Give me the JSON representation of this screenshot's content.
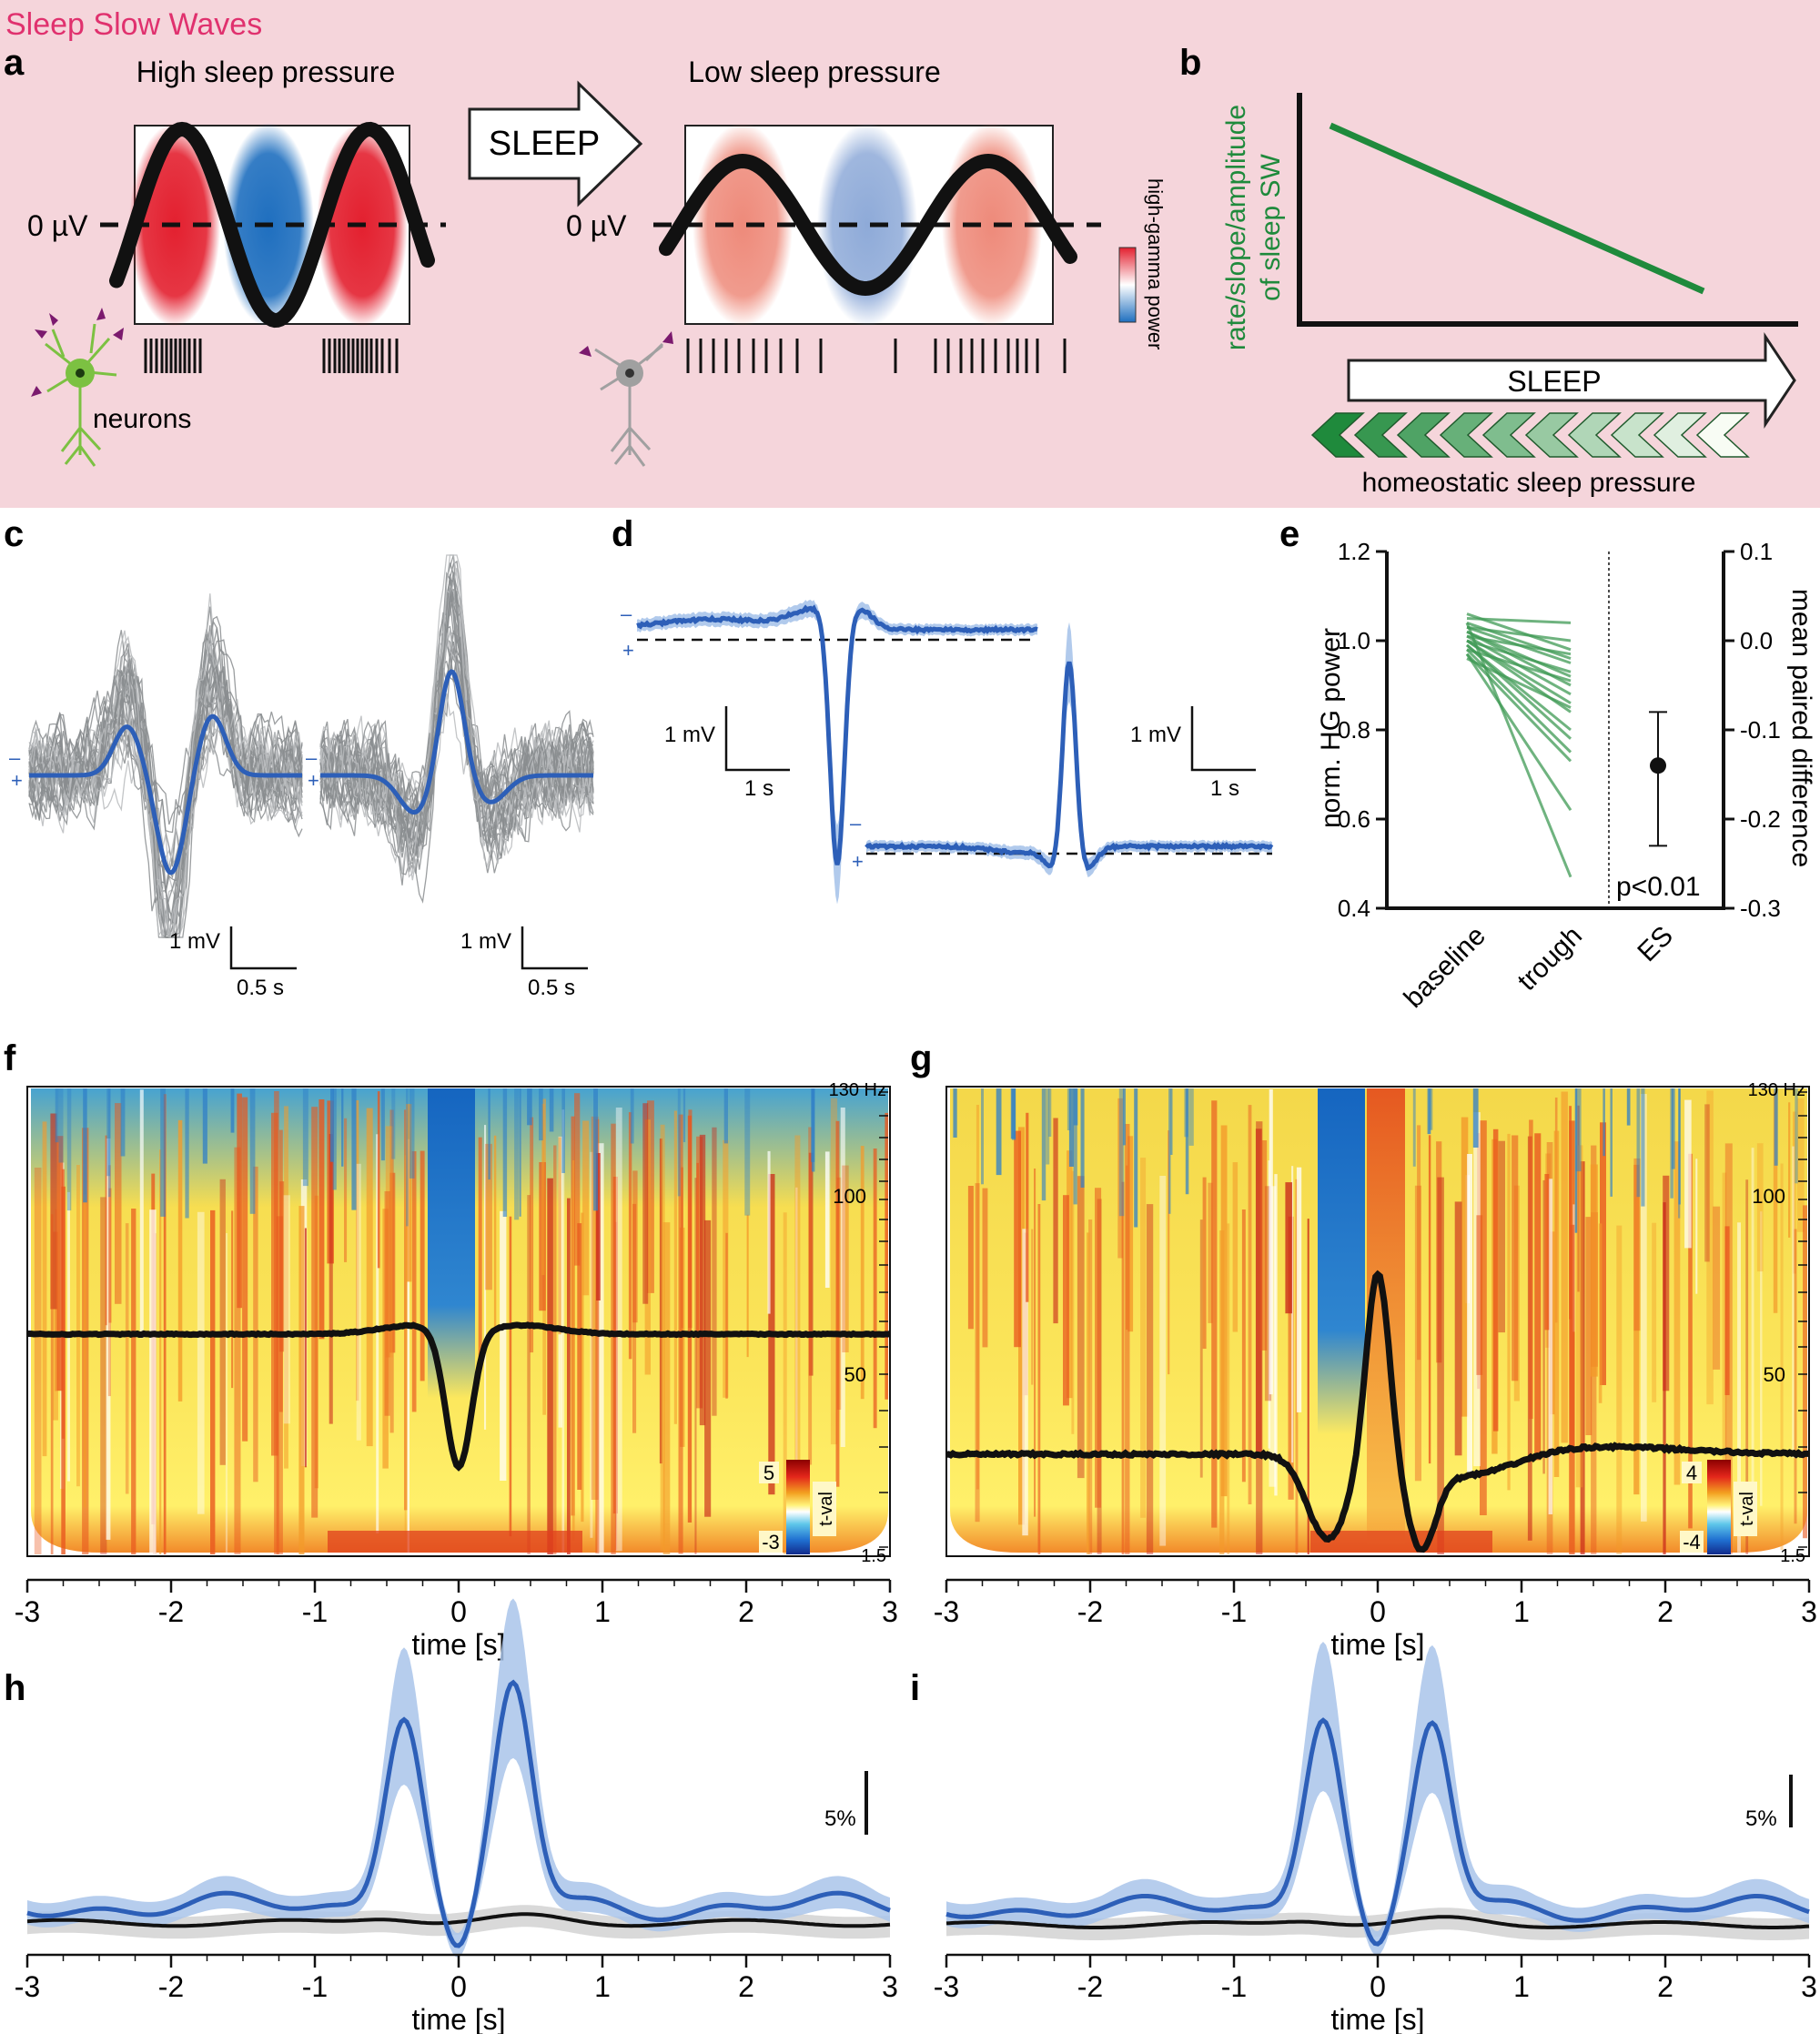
{
  "banner": {
    "title": "Sleep Slow Waves",
    "bg": "#f5d5db",
    "title_color": "#e0316e"
  },
  "panel_letters": {
    "a": "a",
    "b": "b",
    "c": "c",
    "d": "d",
    "e": "e",
    "f": "f",
    "g": "g",
    "h": "h",
    "i": "i"
  },
  "panel_a": {
    "high_title": "High sleep pressure",
    "low_title": "Low sleep pressure",
    "arrow_label": "SLEEP",
    "zero_label": "0 µV",
    "neurons_label": "neurons",
    "colorbar_label": "high-gamma power",
    "colors": {
      "red": "#e3202f",
      "blue": "#1f6fbf",
      "pale_red": "#ee8a7a",
      "pale_blue": "#8eaad8",
      "neuron_active": "#7cc142",
      "neuron_quiet": "#a0a0a0",
      "synapse": "#7b1a6e"
    }
  },
  "panel_b": {
    "ylabel_line1": "rate/slope/amplitude",
    "ylabel_line2": "of sleep SW",
    "arrow_label": "SLEEP",
    "pressure_label": "homeostatic sleep pressure",
    "line_color": "#1f8a3c"
  },
  "panel_c": {
    "scale_y": "1 mV",
    "scale_x": "0.5 s",
    "minus": "–",
    "plus": "+"
  },
  "panel_d": {
    "scale_y": "1 mV",
    "scale_x": "1 s",
    "minus": "–",
    "plus": "+"
  },
  "panel_e": {
    "ylabel_left": "norm. HG power",
    "ylabel_right": "mean paired difference",
    "left_ticks": [
      "1.2",
      "1.0",
      "0.8",
      "0.6",
      "0.4"
    ],
    "right_ticks": [
      "0.1",
      "0.0",
      "-0.1",
      "-0.2",
      "-0.3"
    ],
    "categories": [
      "baseline",
      "trough",
      "ES"
    ],
    "pvalue": "p<0.01"
  },
  "panel_f": {
    "freq_labels": [
      "130 Hz",
      "100",
      "50",
      "1.5"
    ],
    "cbar_max": "5",
    "cbar_min": "-3",
    "cbar_label": "t-val"
  },
  "panel_g": {
    "freq_labels": [
      "130 Hz",
      "100",
      "50",
      "1.5"
    ],
    "cbar_max": "4",
    "cbar_min": "-4",
    "cbar_label": "t-val"
  },
  "time_axis": {
    "ticks": [
      "-3",
      "-2",
      "-1",
      "0",
      "1",
      "2",
      "3"
    ],
    "label": "time [s]"
  },
  "panel_h": {
    "scale_label": "5%"
  },
  "panel_i": {
    "scale_label": "5%"
  },
  "chart_data": [
    {
      "type": "line",
      "panel": "b",
      "x": [
        0,
        1
      ],
      "y": [
        1,
        0
      ],
      "series": [
        {
          "values": [
            1,
            0
          ]
        }
      ]
    },
    {
      "type": "line",
      "panel": "e",
      "categories": [
        "baseline",
        "trough"
      ],
      "ylim": [
        0.4,
        1.2
      ],
      "y2lim": [
        -0.3,
        0.1
      ],
      "pairs": [
        [
          1.06,
          0.98
        ],
        [
          1.05,
          1.04
        ],
        [
          1.04,
          0.96
        ],
        [
          1.03,
          0.95
        ],
        [
          1.03,
          1.0
        ],
        [
          1.02,
          0.92
        ],
        [
          1.02,
          0.9
        ],
        [
          1.01,
          0.97
        ],
        [
          1.01,
          0.88
        ],
        [
          1.0,
          0.86
        ],
        [
          1.0,
          0.93
        ],
        [
          1.0,
          0.84
        ],
        [
          0.99,
          0.8
        ],
        [
          0.99,
          0.78
        ],
        [
          0.98,
          0.91
        ],
        [
          0.98,
          0.75
        ],
        [
          0.97,
          0.73
        ],
        [
          0.97,
          0.62
        ],
        [
          0.96,
          0.85
        ],
        [
          1.04,
          0.47
        ]
      ],
      "effect_size": {
        "mean": -0.14,
        "ci_low": -0.23,
        "ci_high": -0.08
      }
    },
    {
      "type": "line",
      "panel": "h",
      "x": [
        -3,
        3
      ],
      "series": [
        {
          "color": "#2d5fb8",
          "peaks": [
            {
              "t": -0.38,
              "v": 1.0
            },
            {
              "t": 0.38,
              "v": 1.1
            }
          ],
          "trough": {
            "t": 0.0,
            "v": -0.25
          }
        },
        {
          "color": "#111111",
          "baseline": true
        }
      ]
    },
    {
      "type": "line",
      "panel": "i",
      "x": [
        -3,
        3
      ],
      "series": [
        {
          "color": "#2d5fb8",
          "peaks": [
            {
              "t": -0.38,
              "v": 1.1
            },
            {
              "t": 0.38,
              "v": 1.0
            }
          ],
          "trough": {
            "t": 0.0,
            "v": -0.25
          }
        },
        {
          "color": "#111111",
          "baseline": true
        }
      ]
    }
  ]
}
